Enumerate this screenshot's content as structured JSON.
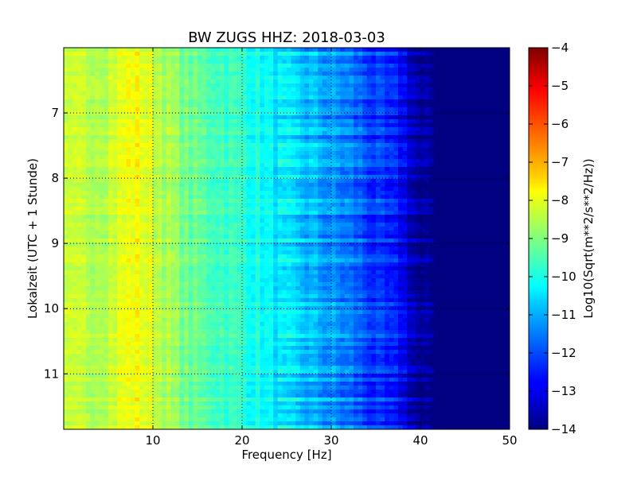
{
  "chart_data": {
    "type": "heatmap",
    "title": "BW ZUGS HHZ: 2018-03-03",
    "xlabel": "Frequency [Hz]",
    "ylabel": "Lokalzeit (UTC + 1 Stunde)",
    "colorbar_label": "Log10(Sqrt(m**2/s**2/Hz))",
    "xlim": [
      0,
      50
    ],
    "ylim": [
      11.85,
      6.0
    ],
    "x_ticks": [
      10,
      20,
      30,
      40,
      50
    ],
    "y_ticks": [
      7,
      8,
      9,
      10,
      11
    ],
    "colorbar_range": [
      -14,
      -4
    ],
    "colorbar_ticks": [
      -4,
      -5,
      -6,
      -7,
      -8,
      -9,
      -10,
      -11,
      -12,
      -13,
      -14
    ],
    "colormap": "jet",
    "grid": true,
    "spectrum_profile": {
      "frequency_hz": [
        0,
        5,
        8,
        10,
        14,
        20,
        24,
        28,
        32,
        35,
        38,
        40,
        42,
        50
      ],
      "level": [
        -8.5,
        -8.3,
        -7.8,
        -8.2,
        -9.2,
        -9.8,
        -10.5,
        -11.0,
        -11.6,
        -12.3,
        -12.8,
        -13.9,
        -14.0,
        -14.0
      ]
    }
  }
}
